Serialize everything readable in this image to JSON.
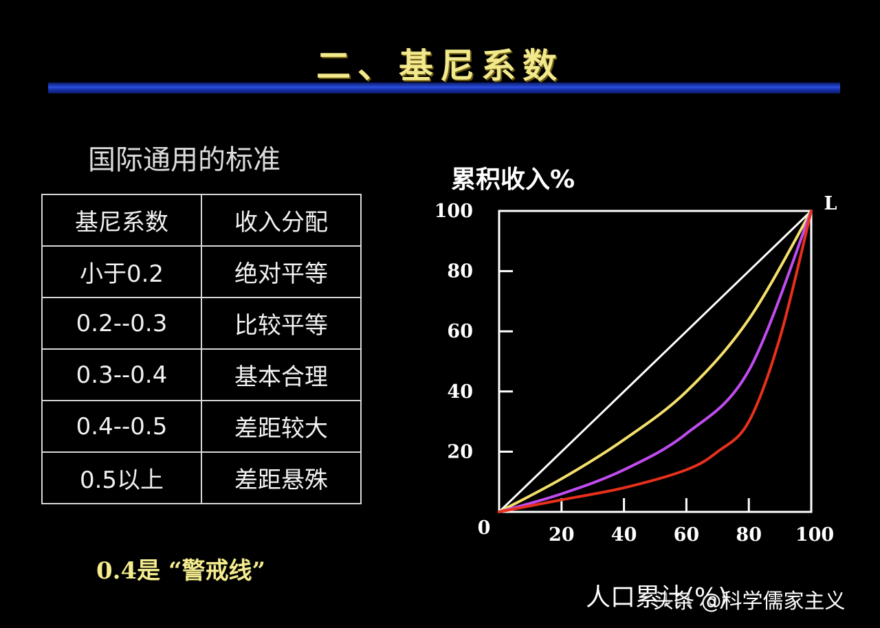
{
  "page": {
    "title": "二、基尼系数",
    "table_caption": "国际通用的标准",
    "warning_note": "0.4是 “警戒线”",
    "watermark": "头条 @科学儒家主义"
  },
  "table": {
    "headers": [
      "基尼系数",
      "收入分配"
    ],
    "rows": [
      [
        "小于0.2",
        "绝对平等"
      ],
      [
        "0.2--0.3",
        "比较平等"
      ],
      [
        "0.3--0.4",
        "基本合理"
      ],
      [
        "0.4--0.5",
        "差距较大"
      ],
      [
        "0.5以上",
        "差距悬殊"
      ]
    ]
  },
  "chart_data": {
    "type": "line",
    "ylabel": "累积收入%",
    "xlabel": "人口累计(%)",
    "origin_label": "0",
    "endpoint_label": "L",
    "xlim": [
      0,
      100
    ],
    "ylim": [
      0,
      100
    ],
    "xticks": [
      20,
      40,
      60,
      80,
      100
    ],
    "yticks": [
      20,
      40,
      60,
      80,
      100
    ],
    "grid": false,
    "series": [
      {
        "color": "#ffffff",
        "x": [
          0,
          100
        ],
        "y": [
          0,
          100
        ]
      },
      {
        "color": "#f4e06a",
        "x": [
          0,
          20,
          40,
          60,
          80,
          100
        ],
        "y": [
          0,
          11,
          24,
          40,
          64,
          100
        ]
      },
      {
        "color": "#c04cf0",
        "x": [
          0,
          20,
          40,
          60,
          80,
          100
        ],
        "y": [
          0,
          6,
          14,
          26,
          47,
          100
        ]
      },
      {
        "color": "#e8301c",
        "x": [
          0,
          20,
          40,
          60,
          70,
          80,
          90,
          100
        ],
        "y": [
          0,
          4,
          8,
          14,
          20,
          30,
          58,
          100
        ]
      }
    ]
  }
}
